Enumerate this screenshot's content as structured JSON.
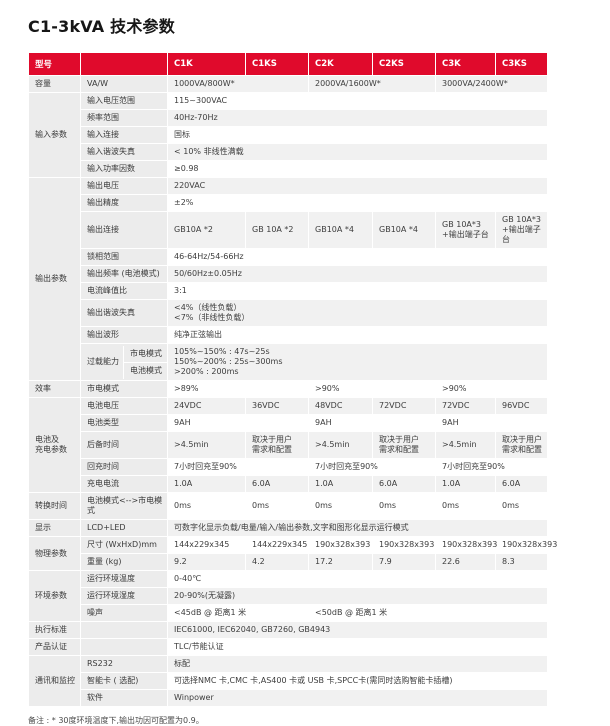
{
  "page": {
    "title": "C1-3kVA 技术参数",
    "footnote": "备注 : * 30度环境温度下,输出功因可配置为0.9。"
  },
  "colors": {
    "header_red": "#E00A2C",
    "label_bg": "#ECECEC",
    "zebra_bg": "#F1F1F1",
    "text": "#3D3D3D"
  },
  "table": {
    "header": [
      "型号",
      "",
      "C1K",
      "C1KS",
      "C2K",
      "C2KS",
      "C3K",
      "C3KS"
    ],
    "rows": [
      {
        "group": {
          "text": "容量",
          "rs": 1
        },
        "label": "VA/W",
        "shade": true,
        "cells": [
          {
            "t": "1000VA/800W*",
            "cs": 2
          },
          {
            "t": "2000VA/1600W*",
            "cs": 2
          },
          {
            "t": "3000VA/2400W*",
            "cs": 2
          }
        ]
      },
      {
        "group": {
          "text": "输入参数",
          "rs": 5
        },
        "label": "输入电压范围",
        "shade": false,
        "cells": [
          {
            "t": "115~300VAC",
            "cs": 6
          }
        ]
      },
      {
        "label": "频率范围",
        "shade": true,
        "cells": [
          {
            "t": "40Hz-70Hz",
            "cs": 6
          }
        ]
      },
      {
        "label": "输入连接",
        "shade": false,
        "cells": [
          {
            "t": "国标",
            "cs": 6
          }
        ]
      },
      {
        "label": "输入谐波失真",
        "shade": true,
        "cells": [
          {
            "t": "< 10% 非线性满载",
            "cs": 6
          }
        ]
      },
      {
        "label": "输入功率因数",
        "shade": false,
        "cells": [
          {
            "t": "≥0.98",
            "cs": 6
          }
        ]
      },
      {
        "group": {
          "text": "输出参数",
          "rs": 9
        },
        "label": "输出电压",
        "shade": true,
        "cells": [
          {
            "t": "220VAC",
            "cs": 6
          }
        ]
      },
      {
        "label": "输出精度",
        "shade": false,
        "cells": [
          {
            "t": "±2%",
            "cs": 6
          }
        ]
      },
      {
        "label": "输出连接",
        "shade": true,
        "cells": [
          {
            "t": "GB10A *2"
          },
          {
            "t": "GB 10A *2"
          },
          {
            "t": "GB10A *4"
          },
          {
            "t": "GB10A *4"
          },
          {
            "t": "GB 10A*3\n+输出端子台"
          },
          {
            "t": "GB 10A*3\n+输出端子台"
          }
        ]
      },
      {
        "label": "锁相范围",
        "shade": false,
        "cells": [
          {
            "t": "46-64Hz/54-66Hz",
            "cs": 6
          }
        ]
      },
      {
        "label": "输出频率 (电池模式)",
        "shade": true,
        "cells": [
          {
            "t": "50/60Hz±0.05Hz",
            "cs": 6
          }
        ]
      },
      {
        "label": "电流峰值比",
        "shade": false,
        "cells": [
          {
            "t": "3:1",
            "cs": 6
          }
        ]
      },
      {
        "label": "输出谐波失真",
        "shade": true,
        "cells": [
          {
            "t": "<4%（线性负载）\n<7%（非线性负载）",
            "cs": 6
          }
        ]
      },
      {
        "label": "输出波形",
        "shade": false,
        "cells": [
          {
            "t": "纯净正弦输出",
            "cs": 6
          }
        ]
      },
      {
        "label_split": {
          "left": "过载能力",
          "right": [
            "市电模式",
            "电池模式"
          ]
        },
        "shade": true,
        "cells": [
          {
            "t": "105%~150% : 47s~25s\n150%~200% : 25s~300ms\n>200% : 200ms",
            "cs": 6
          }
        ]
      },
      {
        "group": {
          "text": "效率",
          "rs": 1
        },
        "label": "市电模式",
        "shade": false,
        "cells": [
          {
            "t": ">89%",
            "cs": 2
          },
          {
            "t": ">90%",
            "cs": 2
          },
          {
            "t": ">90%",
            "cs": 2
          }
        ]
      },
      {
        "group": {
          "text": "电池及\n充电参数",
          "rs": 5
        },
        "label": "电池电压",
        "shade": true,
        "cells": [
          {
            "t": "24VDC"
          },
          {
            "t": "36VDC"
          },
          {
            "t": "48VDC"
          },
          {
            "t": "72VDC"
          },
          {
            "t": "72VDC"
          },
          {
            "t": "96VDC"
          }
        ]
      },
      {
        "label": "电池类型",
        "shade": false,
        "cells": [
          {
            "t": "9AH",
            "cs": 2
          },
          {
            "t": "9AH",
            "cs": 2
          },
          {
            "t": "9AH",
            "cs": 2
          }
        ]
      },
      {
        "label": "后备时间",
        "shade": true,
        "cells": [
          {
            "t": ">4.5min"
          },
          {
            "t": "取决于用户\n需求和配置"
          },
          {
            "t": ">4.5min"
          },
          {
            "t": "取决于用户\n需求和配置"
          },
          {
            "t": ">4.5min"
          },
          {
            "t": "取决于用户\n需求和配置"
          }
        ]
      },
      {
        "label": "回充时间",
        "shade": false,
        "cells": [
          {
            "t": "7小时回充至90%",
            "cs": 2
          },
          {
            "t": "7小时回充至90%",
            "cs": 2
          },
          {
            "t": "7小时回充至90%",
            "cs": 2
          }
        ]
      },
      {
        "label": "充电电流",
        "shade": true,
        "cells": [
          {
            "t": "1.0A"
          },
          {
            "t": "6.0A"
          },
          {
            "t": "1.0A"
          },
          {
            "t": "6.0A"
          },
          {
            "t": "1.0A"
          },
          {
            "t": "6.0A"
          }
        ]
      },
      {
        "group": {
          "text": "转换时间",
          "rs": 1
        },
        "label": "电池模式<-->市电模式",
        "shade": false,
        "cells": [
          {
            "t": "0ms"
          },
          {
            "t": "0ms"
          },
          {
            "t": "0ms"
          },
          {
            "t": "0ms"
          },
          {
            "t": "0ms"
          },
          {
            "t": "0ms"
          }
        ]
      },
      {
        "group": {
          "text": "显示",
          "rs": 1
        },
        "label": "LCD+LED",
        "shade": true,
        "cells": [
          {
            "t": "可数字化显示负载/电量/输入/输出参数,文字和图形化显示运行模式",
            "cs": 6
          }
        ]
      },
      {
        "group": {
          "text": "物理参数",
          "rs": 2
        },
        "label": "尺寸 (WxHxD)mm",
        "shade": false,
        "cells": [
          {
            "t": "144x229x345"
          },
          {
            "t": "144x229x345"
          },
          {
            "t": "190x328x393"
          },
          {
            "t": "190x328x393"
          },
          {
            "t": "190x328x393"
          },
          {
            "t": "190x328x393"
          }
        ]
      },
      {
        "label": "重量 (kg)",
        "shade": true,
        "cells": [
          {
            "t": "9.2"
          },
          {
            "t": "4.2"
          },
          {
            "t": "17.2"
          },
          {
            "t": "7.9"
          },
          {
            "t": "22.6"
          },
          {
            "t": "8.3"
          }
        ]
      },
      {
        "group": {
          "text": "环境参数",
          "rs": 3
        },
        "label": "运行环境温度",
        "shade": false,
        "cells": [
          {
            "t": "0-40℃",
            "cs": 6
          }
        ]
      },
      {
        "label": "运行环境湿度",
        "shade": true,
        "cells": [
          {
            "t": "20-90%(无凝露)",
            "cs": 6
          }
        ]
      },
      {
        "label": "噪声",
        "shade": false,
        "cells": [
          {
            "t": "<45dB @ 距离1 米",
            "cs": 2
          },
          {
            "t": "<50dB @ 距离1 米",
            "cs": 4
          }
        ]
      },
      {
        "group": {
          "text": "执行标准",
          "rs": 1
        },
        "label": "",
        "shade": true,
        "cells": [
          {
            "t": "IEC61000, IEC62040, GB7260, GB4943",
            "cs": 6
          }
        ]
      },
      {
        "group": {
          "text": "产品认证",
          "rs": 1
        },
        "label": "",
        "shade": false,
        "cells": [
          {
            "t": "TLC/节能认证",
            "cs": 6
          }
        ]
      },
      {
        "group": {
          "text": "通讯和监控",
          "rs": 3
        },
        "label": "RS232",
        "shade": true,
        "cells": [
          {
            "t": "标配",
            "cs": 6
          }
        ]
      },
      {
        "label": "智能卡 ( 选配)",
        "shade": false,
        "cells": [
          {
            "t": "可选择NMC 卡,CMC 卡,AS400 卡或 USB 卡,SPCC卡(需同时选购智能卡插槽)",
            "cs": 6
          }
        ]
      },
      {
        "label": "软件",
        "shade": true,
        "cells": [
          {
            "t": "Winpower",
            "cs": 6
          }
        ]
      }
    ]
  }
}
